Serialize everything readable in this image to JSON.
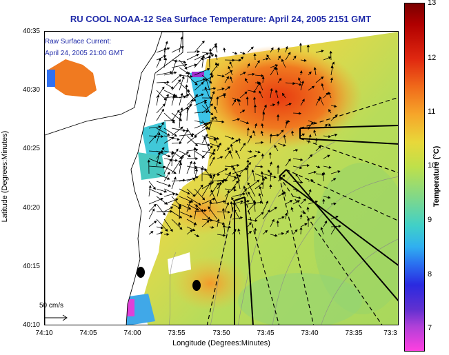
{
  "title": "RU COOL  NOAA-12  Sea Surface Temperature:  April 24, 2005 2151 GMT",
  "raw_current": {
    "title": "Raw Surface Current:",
    "date": "April 24, 2005 21:00 GMT"
  },
  "scale": {
    "label": "50 cm/s"
  },
  "axes": {
    "x_label": "Longitude (Degrees:Minutes)",
    "y_label": "Latitude (Degrees:Minutes)",
    "x_ticks": [
      "74:10",
      "74:05",
      "74:00",
      "73:55",
      "73:50",
      "73:45",
      "73:40",
      "73:35",
      "73:3"
    ],
    "y_ticks": [
      "40:35",
      "40:30",
      "40:25",
      "40:20",
      "40:15",
      "40:10"
    ]
  },
  "colorbar": {
    "label": "Temperature (°C)",
    "ticks": [
      "13",
      "12",
      "11",
      "10",
      "9",
      "8",
      "7"
    ],
    "colors": {
      "max": "#7a0000",
      "mid": "#e8d83a",
      "min": "#ff40e0"
    }
  }
}
